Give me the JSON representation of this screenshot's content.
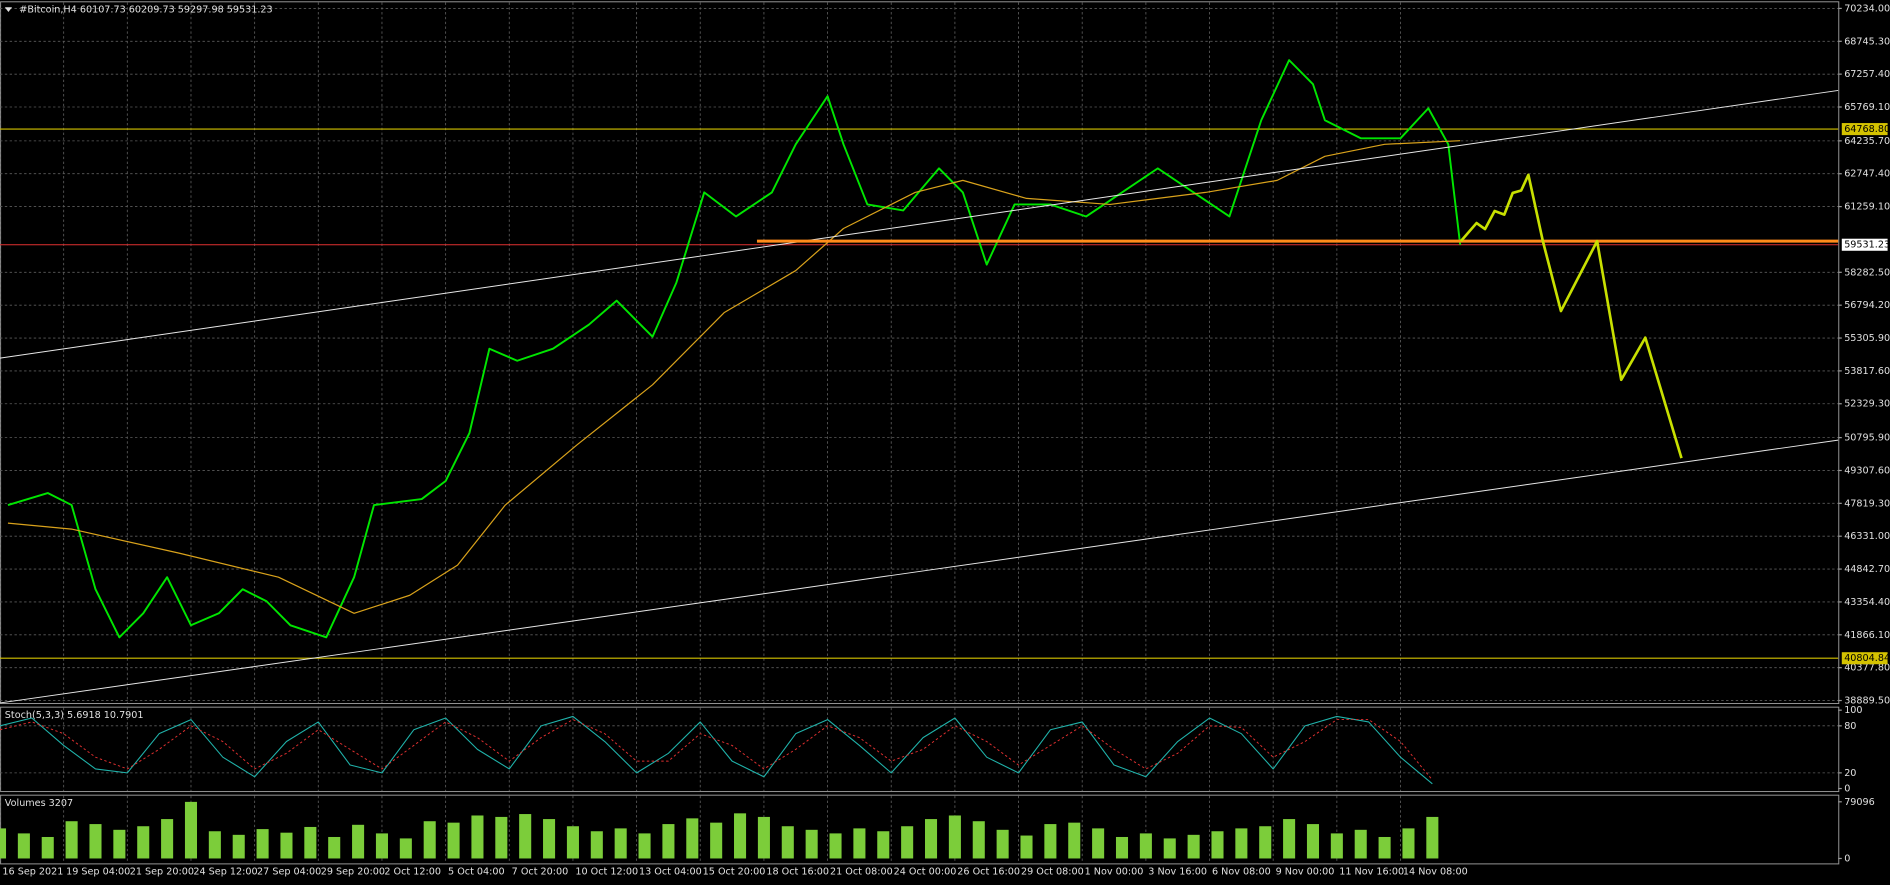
{
  "chart_data": {
    "type": "line",
    "title": "#Bitcoin,H4  60107.73 60209.73 59297.98 59531.23",
    "xlim": [
      0,
      462
    ],
    "xticks": [
      {
        "value": 0,
        "label": "16 Sep 2021"
      },
      {
        "value": 16,
        "label": "19 Sep 04:00"
      },
      {
        "value": 32,
        "label": "21 Sep 20:00"
      },
      {
        "value": 48,
        "label": "24 Sep 12:00"
      },
      {
        "value": 64,
        "label": "27 Sep 04:00"
      },
      {
        "value": 80,
        "label": "29 Sep 20:00"
      },
      {
        "value": 96,
        "label": "2 Oct 12:00"
      },
      {
        "value": 112,
        "label": "5 Oct 04:00"
      },
      {
        "value": 128,
        "label": "7 Oct 20:00"
      },
      {
        "value": 144,
        "label": "10 Oct 12:00"
      },
      {
        "value": 160,
        "label": "13 Oct 04:00"
      },
      {
        "value": 176,
        "label": "15 Oct 20:00"
      },
      {
        "value": 192,
        "label": "18 Oct 16:00"
      },
      {
        "value": 208,
        "label": "21 Oct 08:00"
      },
      {
        "value": 224,
        "label": "24 Oct 00:00"
      },
      {
        "value": 240,
        "label": "26 Oct 16:00"
      },
      {
        "value": 256,
        "label": "29 Oct 08:00"
      },
      {
        "value": 272,
        "label": "1 Nov 00:00"
      },
      {
        "value": 288,
        "label": "3 Nov 16:00"
      },
      {
        "value": 304,
        "label": "6 Nov 08:00"
      },
      {
        "value": 320,
        "label": "9 Nov 00:00"
      },
      {
        "value": 336,
        "label": "11 Nov 16:00"
      },
      {
        "value": 352,
        "label": "14 Nov 08:00"
      }
    ],
    "ylim": [
      38780,
      70506
    ],
    "yticks": [
      {
        "value": 70234,
        "label": "70234.00"
      },
      {
        "value": 68745.3,
        "label": "68745.30"
      },
      {
        "value": 67257.4,
        "label": "67257.40"
      },
      {
        "value": 65769.1,
        "label": "65769.10"
      },
      {
        "value": 64235.7,
        "label": "64235.70"
      },
      {
        "value": 62747.4,
        "label": "62747.40"
      },
      {
        "value": 61259.1,
        "label": "61259.10"
      },
      {
        "value": 58282.5,
        "label": "58282.50"
      },
      {
        "value": 56794.2,
        "label": "56794.20"
      },
      {
        "value": 55305.9,
        "label": "55305.90"
      },
      {
        "value": 53817.6,
        "label": "53817.60"
      },
      {
        "value": 52329.3,
        "label": "52329.30"
      },
      {
        "value": 50795.9,
        "label": "50795.90"
      },
      {
        "value": 49307.6,
        "label": "49307.60"
      },
      {
        "value": 47819.3,
        "label": "47819.30"
      },
      {
        "value": 46331,
        "label": "46331.00"
      },
      {
        "value": 44842.7,
        "label": "44842.70"
      },
      {
        "value": 43354.4,
        "label": "43354.40"
      },
      {
        "value": 41866.1,
        "label": "41866.10"
      },
      {
        "value": 40377.8,
        "label": "40377.80"
      },
      {
        "value": 38889.5,
        "label": "38889.50"
      }
    ],
    "grid": true,
    "series": [
      {
        "color": "#00e600",
        "x": [
          2,
          12,
          18,
          24,
          30,
          36,
          42,
          48,
          55,
          61,
          67,
          73,
          82,
          89,
          94,
          106,
          112,
          118,
          123,
          130,
          139,
          148,
          155,
          164,
          170,
          177,
          185,
          194,
          200,
          208,
          212,
          218,
          227,
          236,
          242,
          248,
          255,
          264,
          273,
          282,
          291,
          300,
          309,
          317,
          324,
          330,
          333,
          342,
          352,
          359,
          364,
          367
        ],
        "values": [
          47742,
          48286,
          47742,
          43930,
          41750,
          42840,
          44474,
          42296,
          42840,
          43930,
          43385,
          42296,
          41750,
          44474,
          47742,
          48014,
          48831,
          51010,
          54822,
          54277,
          54822,
          55911,
          57000,
          55366,
          57817,
          61901,
          60811,
          61901,
          64080,
          66258,
          64080,
          61356,
          61084,
          62990,
          61901,
          58633,
          61356,
          61356,
          60811,
          61901,
          62990,
          61901,
          60811,
          65169,
          67892,
          66803,
          65169,
          64352,
          64352,
          65713,
          64080,
          59531.23
        ]
      },
      {
        "color": "#d9a21b",
        "x": [
          2,
          18,
          45,
          70,
          89,
          103,
          115,
          127,
          145,
          164,
          182,
          200,
          212,
          230,
          242,
          258,
          279,
          303,
          321,
          333,
          348,
          367
        ],
        "values": [
          46925,
          46653,
          45564,
          44474,
          42840,
          43657,
          45019,
          47742,
          50465,
          53188,
          56456,
          58361,
          60267,
          61901,
          62446,
          61629,
          61356,
          61901,
          62446,
          63535,
          64080,
          64243
        ]
      }
    ],
    "levels": [
      {
        "value": 64768.8,
        "label": "64768.80",
        "color": "#d4c200"
      },
      {
        "value": 59531.23,
        "label": "59531.23",
        "color": "#e03030"
      },
      {
        "value": 40804.84,
        "label": "40804.84",
        "color": "#d4c200"
      }
    ],
    "stochastic": {
      "title": "Stoch(5,3,3) 5.6918 10.7901",
      "ylim": [
        0,
        100
      ],
      "yticks": [
        100,
        80,
        20,
        0
      ],
      "x": [
        0,
        8,
        16,
        24,
        32,
        40,
        48,
        56,
        64,
        72,
        80,
        88,
        96,
        104,
        112,
        120,
        128,
        136,
        144,
        152,
        160,
        168,
        176,
        184,
        192,
        200,
        208,
        216,
        224,
        232,
        240,
        248,
        256,
        264,
        272,
        280,
        288,
        296,
        304,
        312,
        320,
        328,
        336,
        344,
        352,
        360
      ],
      "main": {
        "color": "#20b2aa",
        "values": [
          80,
          90,
          55,
          25,
          20,
          70,
          88,
          40,
          15,
          60,
          85,
          30,
          20,
          75,
          90,
          50,
          25,
          80,
          92,
          60,
          20,
          45,
          85,
          35,
          15,
          70,
          88,
          55,
          20,
          65,
          90,
          40,
          20,
          75,
          85,
          30,
          15,
          60,
          90,
          70,
          25,
          80,
          92,
          85,
          40,
          6
        ]
      },
      "signal": {
        "color": "#e03030",
        "values": [
          75,
          85,
          70,
          40,
          25,
          50,
          80,
          60,
          25,
          45,
          75,
          50,
          25,
          55,
          85,
          65,
          35,
          65,
          88,
          70,
          35,
          35,
          70,
          55,
          25,
          50,
          80,
          65,
          35,
          50,
          80,
          60,
          30,
          55,
          80,
          50,
          25,
          45,
          80,
          78,
          40,
          60,
          88,
          88,
          60,
          11
        ]
      }
    },
    "volumes": {
      "title": "Volumes 3207",
      "color": "#7ccd3a",
      "ylim": [
        0,
        79096
      ],
      "yticks": [
        79096,
        0
      ],
      "x": [
        0,
        6,
        12,
        18,
        24,
        30,
        36,
        42,
        48,
        54,
        60,
        66,
        72,
        78,
        84,
        90,
        96,
        102,
        108,
        114,
        120,
        126,
        132,
        138,
        144,
        150,
        156,
        162,
        168,
        174,
        180,
        186,
        192,
        198,
        204,
        210,
        216,
        222,
        228,
        234,
        240,
        246,
        252,
        258,
        264,
        270,
        276,
        282,
        288,
        294,
        300,
        306,
        312,
        318,
        324,
        330,
        336,
        342,
        348,
        354,
        360
      ],
      "values": [
        42000,
        35000,
        30000,
        52000,
        48000,
        40000,
        45000,
        55000,
        79000,
        38000,
        33000,
        41000,
        36000,
        44000,
        30000,
        47000,
        35000,
        28000,
        52000,
        50000,
        60000,
        58000,
        62000,
        55000,
        45000,
        38000,
        42000,
        35000,
        48000,
        56000,
        50000,
        63000,
        58000,
        45000,
        40000,
        35000,
        42000,
        38000,
        45000,
        55000,
        60000,
        52000,
        40000,
        32000,
        48000,
        50000,
        42000,
        30000,
        35000,
        28000,
        33000,
        38000,
        42000,
        45000,
        55000,
        48000,
        35000,
        40000,
        30000,
        42000,
        58000
      ]
    }
  }
}
